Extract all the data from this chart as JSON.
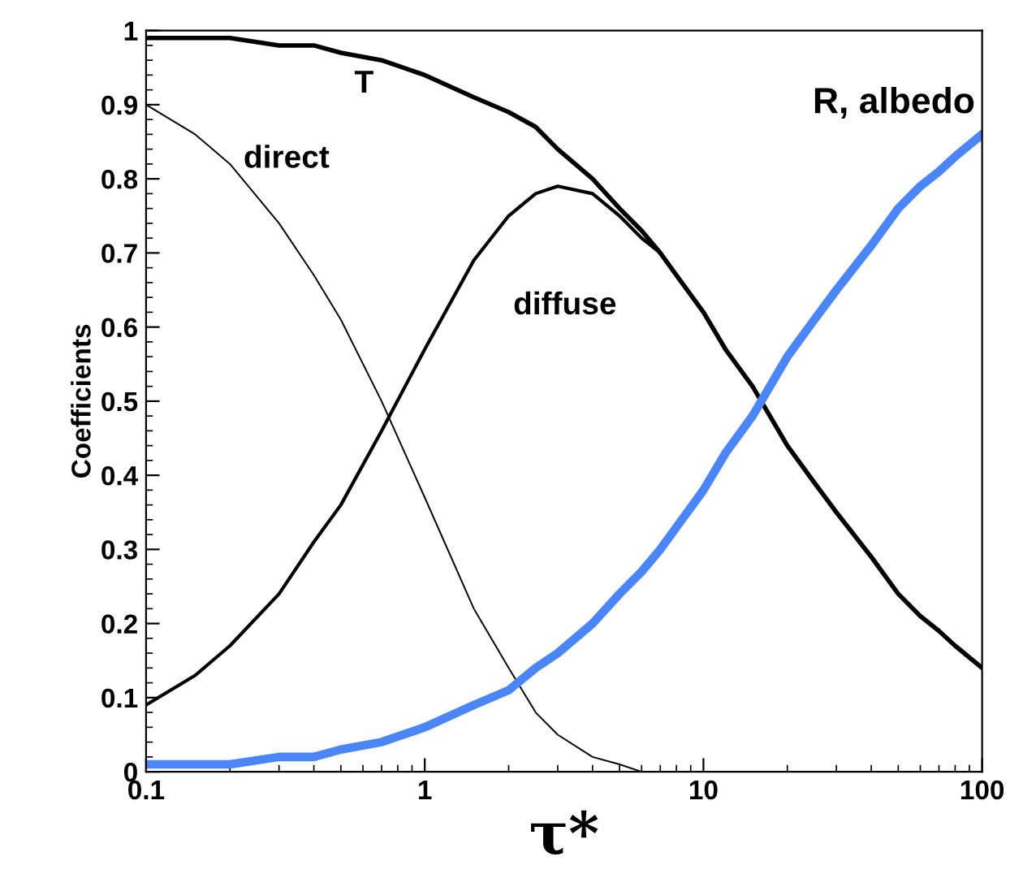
{
  "chart_data": {
    "type": "line",
    "xlabel": "τ*",
    "ylabel": "Coefficients",
    "log": "x",
    "xlim": [
      0.1,
      100
    ],
    "ylim": [
      0,
      1
    ],
    "xticks": [
      0.1,
      1,
      10,
      100
    ],
    "yticks": [
      0,
      0.1,
      0.2,
      0.3,
      0.4,
      0.5,
      0.6,
      0.7,
      0.8,
      0.9,
      1
    ],
    "grid": false,
    "legend": false,
    "marker": "none",
    "line_style": "solid",
    "series": [
      {
        "name": "T",
        "color": "#000000",
        "x": [
          0.1,
          0.15,
          0.2,
          0.3,
          0.4,
          0.5,
          0.7,
          1,
          1.5,
          2,
          2.5,
          3,
          4,
          5,
          6,
          7,
          8,
          10,
          12,
          15,
          20,
          25,
          30,
          40,
          50,
          60,
          70,
          80,
          100
        ],
        "values": [
          0.99,
          0.99,
          0.99,
          0.98,
          0.98,
          0.97,
          0.96,
          0.94,
          0.91,
          0.89,
          0.87,
          0.84,
          0.8,
          0.76,
          0.73,
          0.7,
          0.67,
          0.62,
          0.57,
          0.52,
          0.44,
          0.39,
          0.35,
          0.29,
          0.24,
          0.21,
          0.19,
          0.17,
          0.14
        ]
      },
      {
        "name": "diffuse",
        "color": "#000000",
        "x": [
          0.1,
          0.15,
          0.2,
          0.3,
          0.4,
          0.5,
          0.7,
          1,
          1.5,
          2,
          2.5,
          3,
          4,
          5,
          6,
          7,
          8,
          10
        ],
        "values": [
          0.09,
          0.13,
          0.17,
          0.24,
          0.31,
          0.36,
          0.46,
          0.57,
          0.69,
          0.75,
          0.78,
          0.79,
          0.78,
          0.75,
          0.72,
          0.7,
          0.67,
          0.62
        ]
      },
      {
        "name": "direct",
        "color": "#000000",
        "x": [
          0.1,
          0.15,
          0.2,
          0.3,
          0.4,
          0.5,
          0.7,
          1,
          1.5,
          2,
          2.5,
          3,
          4,
          5,
          6,
          7,
          10,
          100
        ],
        "values": [
          0.9,
          0.86,
          0.82,
          0.74,
          0.67,
          0.61,
          0.5,
          0.37,
          0.22,
          0.14,
          0.08,
          0.05,
          0.02,
          0.01,
          0,
          0,
          0,
          0
        ]
      },
      {
        "name": "R, albedo",
        "color": "#4a86f7",
        "x": [
          0.1,
          0.15,
          0.2,
          0.3,
          0.4,
          0.5,
          0.7,
          1,
          1.5,
          2,
          2.5,
          3,
          4,
          5,
          6,
          7,
          8,
          10,
          12,
          15,
          20,
          25,
          30,
          40,
          50,
          60,
          70,
          80,
          100
        ],
        "values": [
          0.01,
          0.01,
          0.01,
          0.02,
          0.02,
          0.03,
          0.04,
          0.06,
          0.09,
          0.11,
          0.14,
          0.16,
          0.2,
          0.24,
          0.27,
          0.3,
          0.33,
          0.38,
          0.43,
          0.48,
          0.56,
          0.61,
          0.65,
          0.71,
          0.76,
          0.79,
          0.81,
          0.83,
          0.86
        ]
      }
    ]
  }
}
